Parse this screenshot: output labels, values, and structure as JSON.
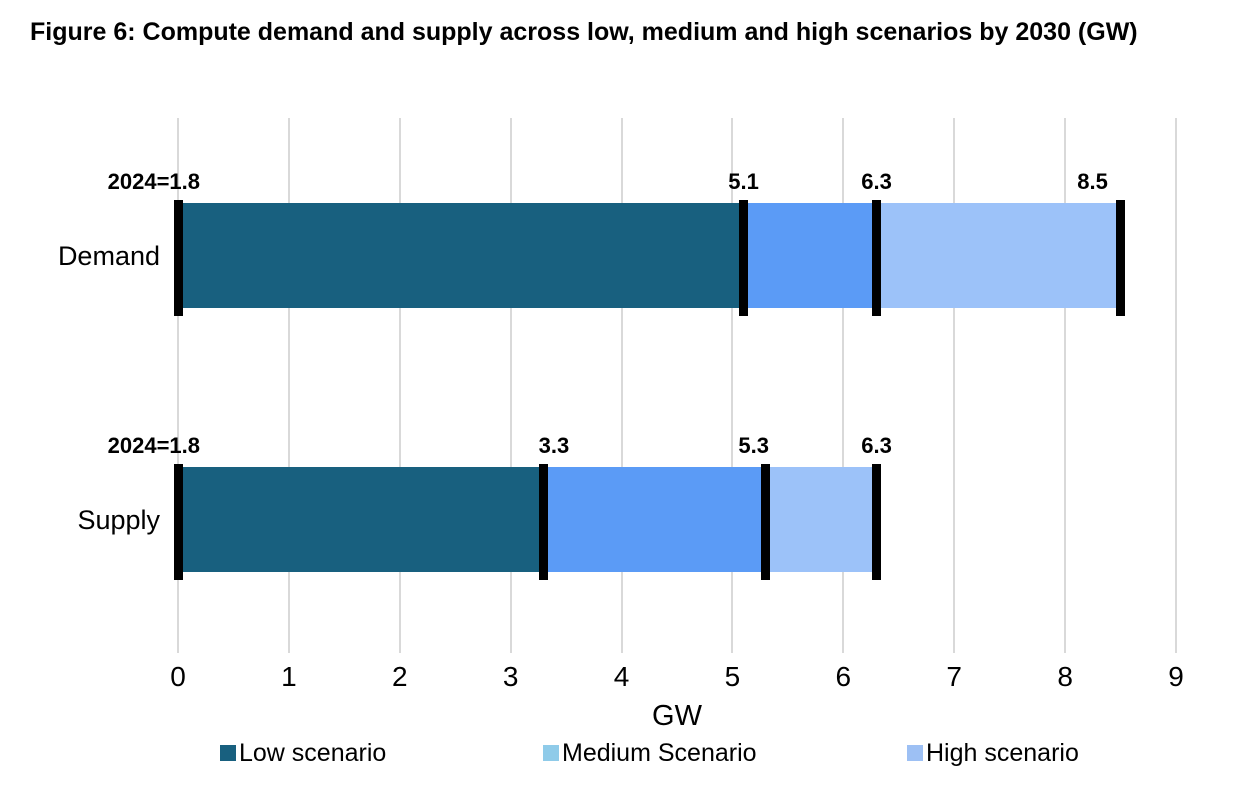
{
  "figure": {
    "background_color": "#FFFFFF",
    "text_color": "#000000"
  },
  "chart_data": {
    "type": "bar",
    "variant": "horizontal-stacked",
    "title": "Figure 6: Compute demand and supply across low, medium and high scenarios by 2030 (GW)",
    "xlabel": "GW",
    "xlim": [
      0,
      9
    ],
    "xtick_values": [
      0,
      1,
      2,
      3,
      4,
      5,
      6,
      7,
      8,
      9
    ],
    "xtick_labels": [
      "0",
      "1",
      "2",
      "3",
      "4",
      "5",
      "6",
      "7",
      "8",
      "9"
    ],
    "grid": "vertical",
    "gridline_color": "#D9D9D9",
    "marker_color": "#000000",
    "legend_position": "bottom",
    "series": [
      {
        "key": "low",
        "name": "Low scenario",
        "bar_color": "#18607F",
        "legend_color": "#18607F"
      },
      {
        "key": "medium",
        "name": "Medium Scenario",
        "bar_color": "#5B9BF6",
        "legend_color": "#8FCBE9"
      },
      {
        "key": "high",
        "name": "High scenario",
        "bar_color": "#9CC2F9",
        "legend_color": "#9DC0F4"
      }
    ],
    "rows": [
      {
        "category": "Demand",
        "baseline_annotation": "2024=1.8",
        "segments": [
          {
            "series": "low",
            "from": 0,
            "to": 5.1,
            "label": "5.1",
            "label_dx": 0
          },
          {
            "series": "medium",
            "from": 5.1,
            "to": 6.3,
            "label": "6.3",
            "label_dx": 0
          },
          {
            "series": "high",
            "from": 6.3,
            "to": 8.5,
            "label": "8.5",
            "label_dx": -28
          }
        ]
      },
      {
        "category": "Supply",
        "baseline_annotation": "2024=1.8",
        "segments": [
          {
            "series": "low",
            "from": 0,
            "to": 3.3,
            "label": "3.3",
            "label_dx": 10
          },
          {
            "series": "medium",
            "from": 3.3,
            "to": 5.3,
            "label": "5.3",
            "label_dx": -12
          },
          {
            "series": "high",
            "from": 5.3,
            "to": 6.3,
            "label": "6.3",
            "label_dx": 0
          }
        ]
      }
    ]
  }
}
